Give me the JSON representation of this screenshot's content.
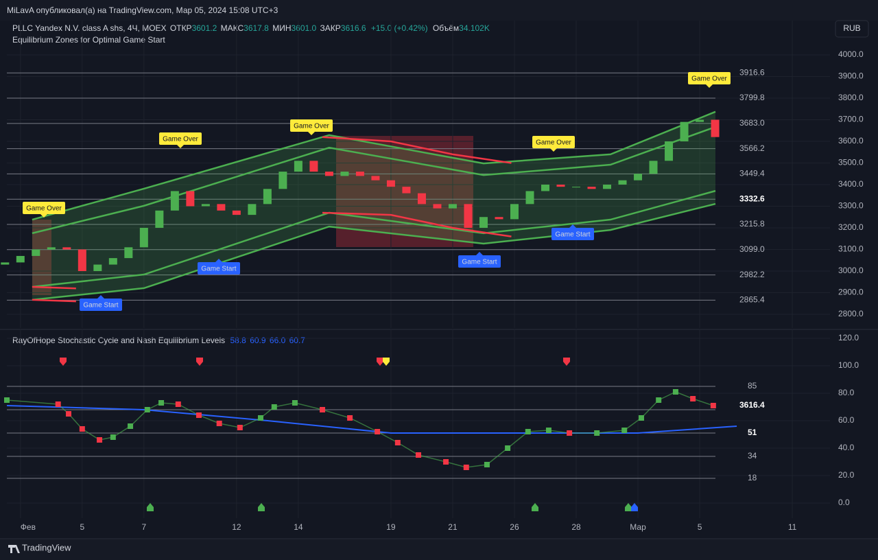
{
  "header": {
    "publisher": "MiLavA опубликовал(а) на TradingView.com, Мар 05, 2024 15:08 UTC+3",
    "symbol": "PLLC Yandex N.V. class A shs, 4Ч, MOEX",
    "open_label": "ОТКР",
    "open": "3601.2",
    "high_label": "МАКС",
    "high": "3617.8",
    "low_label": "МИН",
    "low": "3601.0",
    "close_label": "ЗАКР",
    "close": "3616.6",
    "change": "+15.0 (+0.42%)",
    "volume_label": "Объём",
    "volume": "34.102K",
    "currency": "RUB",
    "footer": "TradingView"
  },
  "chart_data": [
    {
      "type": "candlestick",
      "title": "Equilibrium Zones for Optimal Game Start",
      "up_color": "#4caf50",
      "down_color": "#f23645",
      "x": [
        -0.5,
        0,
        0.5,
        1,
        1.5,
        2,
        2.5,
        3,
        3.5,
        4,
        4.5,
        5,
        5.5,
        6,
        6.5,
        7,
        7.5,
        8,
        8.5,
        9,
        9.5,
        10,
        10.5,
        11,
        11.5,
        12,
        12.5,
        13,
        13.5,
        14,
        14.5,
        15,
        15.5,
        16,
        16.5,
        17,
        17.5,
        18,
        18.5,
        19,
        19.5,
        20,
        20.5,
        21,
        21.5,
        22,
        22.5
      ],
      "open": [
        3030,
        3040,
        3070,
        3100,
        3110,
        3100,
        3000,
        3030,
        3060,
        3110,
        3200,
        3280,
        3370,
        3300,
        3310,
        3280,
        3260,
        3310,
        3380,
        3460,
        3510,
        3460,
        3440,
        3460,
        3440,
        3420,
        3390,
        3360,
        3310,
        3290,
        3310,
        3200,
        3250,
        3240,
        3310,
        3370,
        3400,
        3390,
        3390,
        3380,
        3400,
        3420,
        3450,
        3510,
        3600,
        3690,
        3700
      ],
      "close": [
        3040,
        3070,
        3100,
        3110,
        3100,
        3000,
        3030,
        3060,
        3110,
        3200,
        3280,
        3370,
        3300,
        3310,
        3280,
        3260,
        3310,
        3380,
        3460,
        3510,
        3460,
        3440,
        3460,
        3440,
        3420,
        3390,
        3360,
        3310,
        3290,
        3310,
        3200,
        3250,
        3240,
        3310,
        3370,
        3400,
        3390,
        3390,
        3380,
        3400,
        3420,
        3450,
        3510,
        3600,
        3690,
        3700,
        3620
      ],
      "series": [
        {
          "color": "#4caf50",
          "x": [
            0.38,
            4,
            10,
            15,
            19.11,
            22.51
          ],
          "values": [
            3238,
            3381,
            3629,
            3498,
            3540,
            3737
          ]
        },
        {
          "color": "#4caf50",
          "x": [
            0.38,
            4,
            10,
            15,
            19.11,
            22.51
          ],
          "values": [
            3175,
            3302,
            3571,
            3444,
            3492,
            3667
          ]
        },
        {
          "color": "#4caf50",
          "x": [
            0.38,
            4,
            10,
            15,
            19.11,
            22.51
          ],
          "values": [
            2927,
            2984,
            3270,
            3175,
            3238,
            3371
          ]
        },
        {
          "color": "#4caf50",
          "x": [
            0.38,
            4,
            10,
            15,
            19.11,
            22.51
          ],
          "values": [
            2867,
            2921,
            3206,
            3127,
            3190,
            3311
          ]
        },
        {
          "color": "#f23645",
          "x": [
            9.78,
            12,
            14,
            15.9
          ],
          "values": [
            3620,
            3600,
            3540,
            3500
          ]
        },
        {
          "color": "#f23645",
          "x": [
            9.78,
            12,
            14,
            15.9
          ],
          "values": [
            3270,
            3260,
            3200,
            3160
          ]
        },
        {
          "color": "#f23645",
          "x": [
            0.38,
            1.8
          ],
          "values": [
            2927,
            2920
          ]
        },
        {
          "color": "#f23645",
          "x": [
            0.38,
            1.8
          ],
          "values": [
            2867,
            2860
          ]
        }
      ],
      "levels": [
        3916.6,
        {
          "value": 3799.8,
          "label": "3799.8"
        },
        {
          "value": 3683.0,
          "label": "3683.0"
        },
        3566.2,
        3449.4,
        3332.6,
        3215.8,
        {
          "value": 3099.0,
          "label": "3099.0"
        },
        2982.2,
        2865.4
      ],
      "annotations": [
        "Game Over",
        "Game Over",
        "Game Over",
        "Game Over",
        "Game Over",
        "Game Start",
        "Game Start",
        "Game Start",
        "Game Start"
      ],
      "xlim": [
        -0.44,
        26.22
      ],
      "ylim": [
        2736.5,
        4158.7
      ],
      "yticks": [
        {
          "value": 2800,
          "label": "2800.0"
        },
        {
          "value": 2900,
          "label": "2900.0"
        },
        {
          "value": 3000,
          "label": "3000.0"
        },
        {
          "value": 3100,
          "label": "3100.0"
        },
        {
          "value": 3200,
          "label": "3200.0"
        },
        {
          "value": 3300,
          "label": "3300.0"
        },
        {
          "value": 3400,
          "label": "3400.0"
        },
        {
          "value": 3500,
          "label": "3500.0"
        },
        {
          "value": 3600,
          "label": "3600.0"
        },
        {
          "value": 3700,
          "label": "3700.0"
        },
        {
          "value": 3800,
          "label": "3800.0"
        },
        {
          "value": 3900,
          "label": "3900.0"
        },
        {
          "value": 4000,
          "label": "4000.0"
        }
      ]
    },
    {
      "type": "line",
      "title": "RayOfHope Stochastic Cycle and Nash Equilibrium Levels",
      "legend_values": [
        "58.8",
        "60.9",
        "66.0",
        "60.7"
      ],
      "series": [
        {
          "color": "#4caf50",
          "down_color": "#f23645",
          "x": [
            -0.44,
            1.22,
            1.56,
            2,
            2.56,
            3,
            3.56,
            4.11,
            4.56,
            5.11,
            5.78,
            6.44,
            7.11,
            7.78,
            8.22,
            8.89,
            9.78,
            10.67,
            11.56,
            12.22,
            12.89,
            13.78,
            14.44,
            15.11,
            15.78,
            16.44,
            17.11,
            17.78,
            18.67,
            19.56,
            20.11,
            20.67,
            21.22,
            21.78,
            22.44
          ],
          "values": [
            75,
            72,
            65,
            54,
            46,
            48,
            56,
            68,
            73,
            72,
            64,
            58,
            55,
            62,
            70,
            73,
            68,
            62,
            52,
            44,
            35,
            30,
            26,
            28,
            40,
            52,
            53,
            51,
            51,
            53,
            62,
            75,
            81,
            76,
            71
          ]
        },
        {
          "color": "#2962ff",
          "x": [
            -0.44,
            4,
            8,
            12,
            16,
            20,
            23.2
          ],
          "values": [
            71,
            68,
            60,
            51,
            51,
            51,
            56
          ]
        }
      ],
      "levels": [
        85,
        68,
        51,
        34,
        18
      ],
      "price_label": "3616.4",
      "xlim": [
        -0.44,
        26.22
      ],
      "ylim": [
        -11,
        126.5
      ],
      "yticks": [
        {
          "value": 0,
          "label": "0.0"
        },
        {
          "value": 20,
          "label": "20.0"
        },
        {
          "value": 40,
          "label": "40.0"
        },
        {
          "value": 60,
          "label": "60.0"
        },
        {
          "value": 80,
          "label": "80.0"
        },
        {
          "value": 100,
          "label": "100.0"
        },
        {
          "value": 120,
          "label": "120.0"
        }
      ],
      "xticks": [
        {
          "value": 0,
          "label": "Фев"
        },
        {
          "value": 2,
          "label": "5"
        },
        {
          "value": 4,
          "label": "7"
        },
        {
          "value": 7,
          "label": "12"
        },
        {
          "value": 9,
          "label": "14"
        },
        {
          "value": 12,
          "label": "19"
        },
        {
          "value": 14,
          "label": "21"
        },
        {
          "value": 16,
          "label": "26"
        },
        {
          "value": 18,
          "label": "28"
        },
        {
          "value": 20,
          "label": "Мар"
        },
        {
          "value": 22,
          "label": "5"
        },
        {
          "value": 25,
          "label": "11"
        }
      ]
    }
  ]
}
